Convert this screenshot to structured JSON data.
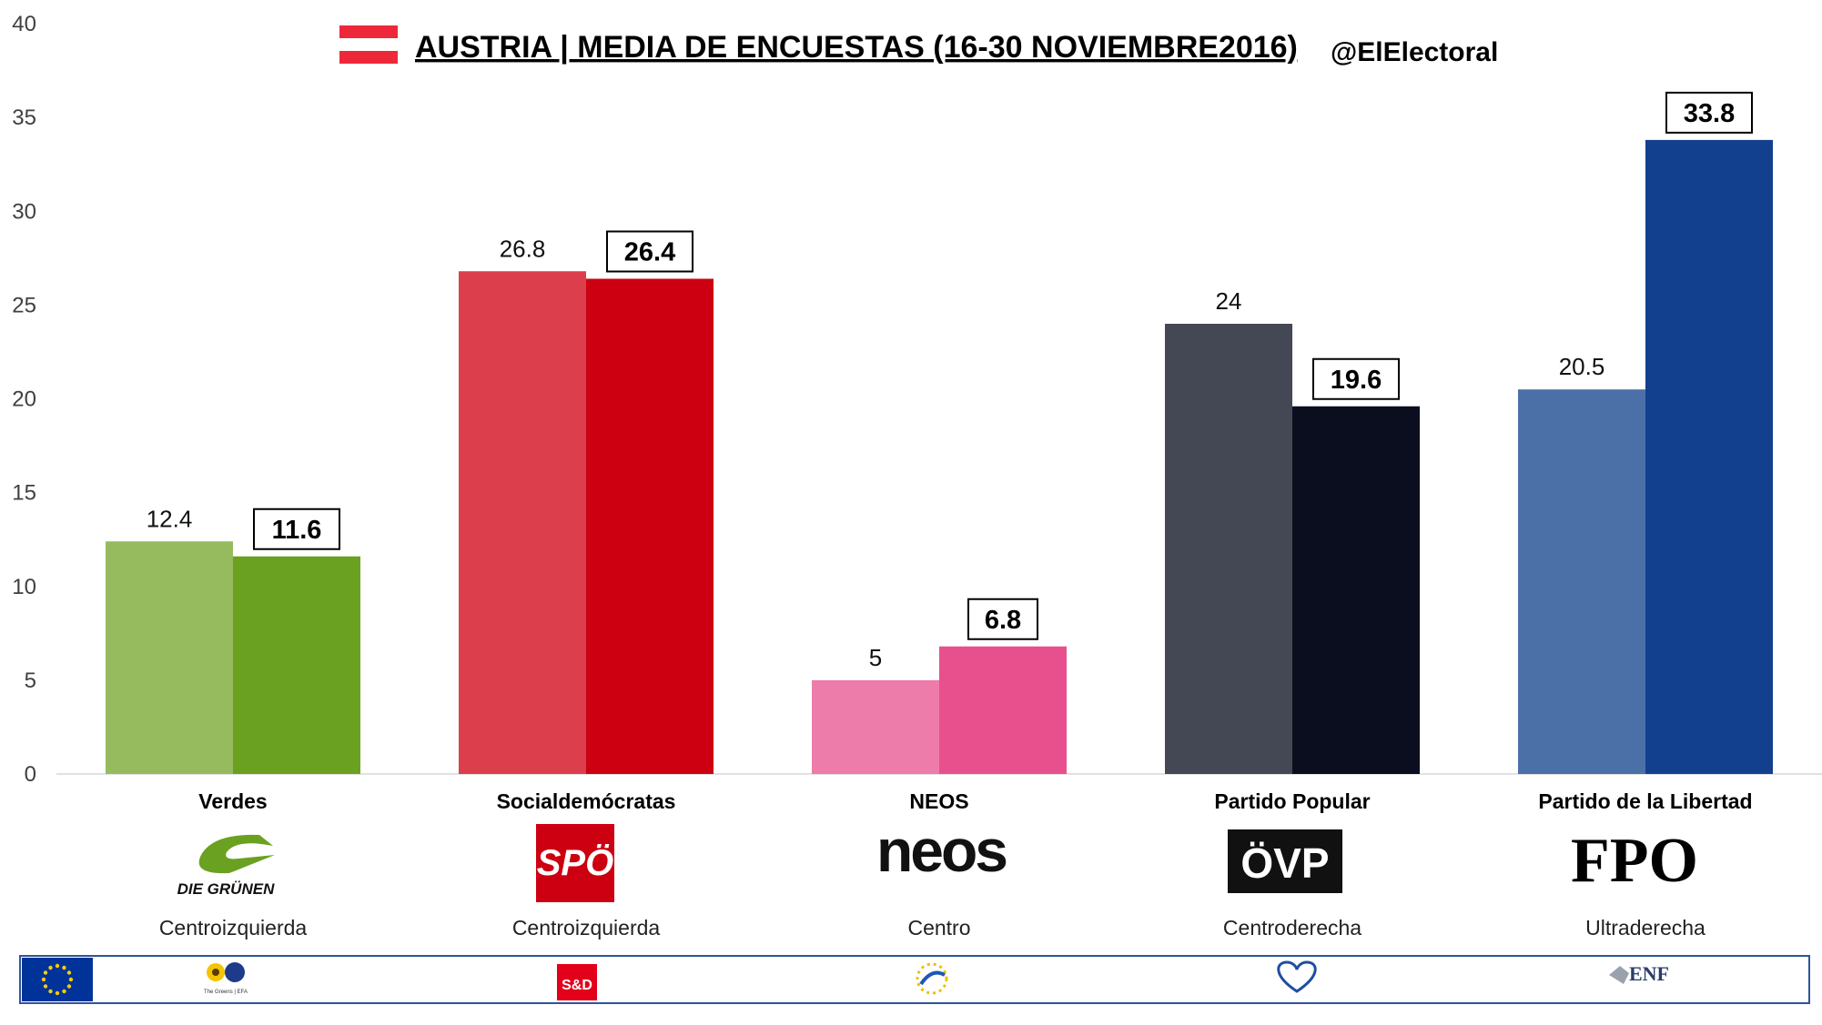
{
  "header": {
    "title": "AUSTRIA | MEDIA DE ENCUESTAS (16-30 NOVIEMBRE2016)",
    "handle": "@ElElectoral"
  },
  "colors": {
    "flag_red": "#ED2939",
    "bar_verdes_prev": "#96BB5F",
    "bar_verdes_now": "#6AA121",
    "bar_spo_prev": "#DC3F4B",
    "bar_spo_now": "#CC0010",
    "bar_neos_prev": "#EE7CAA",
    "bar_neos_now": "#E8508D",
    "bar_ovp_prev": "#444855",
    "bar_ovp_now": "#0A0E1E",
    "bar_fpo_prev": "#4B70A8",
    "bar_fpo_now": "#12408E",
    "footer_border": "#2F5597"
  },
  "chart_data": {
    "type": "bar",
    "title": "AUSTRIA | MEDIA DE ENCUESTAS (16-30 NOVIEMBRE2016)",
    "categories": [
      "Verdes",
      "Socialdemócratas",
      "NEOS",
      "Partido Popular",
      "Partido de la Libertad"
    ],
    "ideology": [
      "Centroizquierda",
      "Centroizquierda",
      "Centro",
      "Centroderecha",
      "Ultraderecha"
    ],
    "series": [
      {
        "values": [
          12.4,
          26.8,
          5,
          24,
          20.5
        ]
      },
      {
        "values": [
          11.6,
          26.4,
          6.8,
          19.6,
          33.8
        ]
      }
    ],
    "value_labels": [
      [
        "12.4",
        "26.8",
        "5",
        "24",
        "20.5"
      ],
      [
        "11.6",
        "26.4",
        "6.8",
        "19.6",
        "33.8"
      ]
    ],
    "yticks": [
      "0",
      "5",
      "10",
      "15",
      "20",
      "25",
      "30",
      "35",
      "40"
    ],
    "ylim": [
      0,
      40
    ],
    "grid": false,
    "xlabel": "",
    "ylabel": ""
  },
  "party_logos": [
    {
      "icon": "die-grunen-logo-icon",
      "text": "DIE GRÜNEN"
    },
    {
      "icon": "spo-logo-icon",
      "text": "SPÖ"
    },
    {
      "icon": "neos-logo-icon",
      "text": "neos"
    },
    {
      "icon": "ovp-logo-icon",
      "text": "ÖVP"
    },
    {
      "icon": "fpo-logo-icon",
      "text": "FPO"
    }
  ],
  "footer": {
    "eu_flag_icon": "eu-flag-icon",
    "group_logos": [
      {
        "icon": "greens-efa-logo-icon",
        "text": "The Greens | EFA"
      },
      {
        "icon": "s-and-d-logo-icon",
        "text": "S&D"
      },
      {
        "icon": "alde-logo-icon",
        "text": ""
      },
      {
        "icon": "epp-logo-icon",
        "text": ""
      },
      {
        "icon": "enf-logo-icon",
        "text": "ENF"
      }
    ]
  }
}
